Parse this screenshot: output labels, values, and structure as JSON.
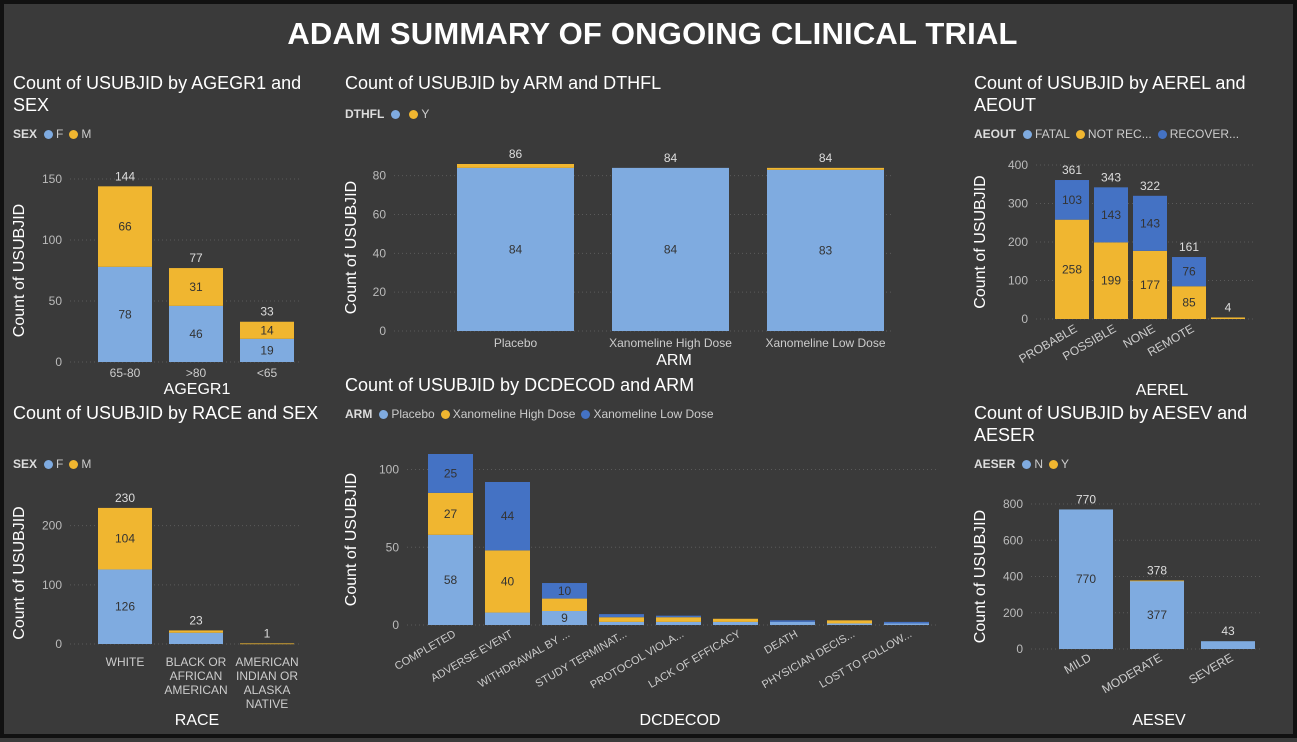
{
  "header": {
    "title": "ADAM SUMMARY OF ONGOING CLINICAL TRIAL"
  },
  "colors": {
    "light_blue": "#7fabe0",
    "yellow": "#f0b630",
    "dark_blue": "#4472c4",
    "background": "#3a3a3a"
  },
  "chart_data": [
    {
      "id": "agegr1",
      "type": "bar",
      "stacked": true,
      "title": "Count of USUBJID by AGEGR1 and SEX",
      "legend_title": "SEX",
      "xlabel": "AGEGR1",
      "ylabel": "Count of USUBJID",
      "categories": [
        "65-80",
        ">80",
        "<65"
      ],
      "series": [
        {
          "name": "F",
          "values": [
            78,
            46,
            19
          ],
          "color": "#7fabe0",
          "labels": [
            "78",
            "46",
            "19"
          ]
        },
        {
          "name": "M",
          "values": [
            66,
            31,
            14
          ],
          "color": "#f0b630",
          "labels": [
            "66",
            "31",
            "14"
          ]
        }
      ],
      "totals": [
        144,
        77,
        33
      ],
      "ylim": [
        0,
        150
      ],
      "yticks": [
        0,
        50,
        100,
        150
      ]
    },
    {
      "id": "arm",
      "type": "bar",
      "stacked": true,
      "title": "Count of USUBJID by ARM and DTHFL",
      "legend_title": "DTHFL",
      "xlabel": "ARM",
      "ylabel": "Count of USUBJID",
      "categories": [
        "Placebo",
        "Xanomeline High Dose",
        "Xanomeline Low Dose"
      ],
      "series": [
        {
          "name": "",
          "values": [
            84,
            84,
            83
          ],
          "color": "#7fabe0",
          "labels": [
            "84",
            "84",
            "83"
          ]
        },
        {
          "name": "Y",
          "values": [
            2,
            0,
            1
          ],
          "color": "#f0b630",
          "labels": [
            "",
            "",
            ""
          ]
        }
      ],
      "totals": [
        86,
        84,
        84
      ],
      "ylim": [
        0,
        86
      ],
      "yticks": [
        0,
        20,
        40,
        60,
        80
      ]
    },
    {
      "id": "aerel",
      "type": "bar",
      "stacked": true,
      "title": "Count of USUBJID by AEREL and AEOUT",
      "legend_title": "AEOUT",
      "xlabel": "AEREL",
      "ylabel": "Count of USUBJID",
      "categories": [
        "PROBABLE",
        "POSSIBLE",
        "NONE",
        "REMOTE",
        ""
      ],
      "series": [
        {
          "name": "FATAL",
          "values": [
            0,
            0,
            0,
            0,
            0
          ],
          "color": "#7fabe0",
          "labels": [
            "",
            "",
            "",
            "",
            ""
          ]
        },
        {
          "name": "NOT REC...",
          "values": [
            258,
            199,
            177,
            85,
            4
          ],
          "color": "#f0b630",
          "labels": [
            "258",
            "199",
            "177",
            "85",
            ""
          ]
        },
        {
          "name": "RECOVER...",
          "values": [
            103,
            143,
            143,
            76,
            0
          ],
          "color": "#4472c4",
          "labels": [
            "103",
            "143",
            "143",
            "76",
            ""
          ]
        }
      ],
      "totals": [
        361,
        343,
        322,
        161,
        4
      ],
      "ylim": [
        0,
        400
      ],
      "yticks": [
        0,
        100,
        200,
        300,
        400
      ]
    },
    {
      "id": "race",
      "type": "bar",
      "stacked": true,
      "title": "Count of USUBJID by RACE and SEX",
      "legend_title": "SEX",
      "xlabel": "RACE",
      "ylabel": "Count of USUBJID",
      "categories": [
        "WHITE",
        "BLACK OR AFRICAN AMERICAN",
        "AMERICAN INDIAN OR ALASKA NATIVE"
      ],
      "category_lines": [
        [
          "WHITE"
        ],
        [
          "BLACK OR",
          "AFRICAN",
          "AMERICAN"
        ],
        [
          "AMERICAN",
          "INDIAN OR",
          "ALASKA",
          "NATIVE"
        ]
      ],
      "series": [
        {
          "name": "F",
          "values": [
            126,
            19,
            0
          ],
          "color": "#7fabe0",
          "labels": [
            "126",
            "",
            ""
          ]
        },
        {
          "name": "M",
          "values": [
            104,
            4,
            1
          ],
          "color": "#f0b630",
          "labels": [
            "104",
            "",
            ""
          ]
        }
      ],
      "totals": [
        230,
        23,
        1
      ],
      "ylim": [
        0,
        240
      ],
      "yticks": [
        0,
        100,
        200
      ]
    },
    {
      "id": "dcdecod",
      "type": "bar",
      "stacked": true,
      "title": "Count of USUBJID by DCDECOD and ARM",
      "legend_title": "ARM",
      "xlabel": "DCDECOD",
      "ylabel": "Count of USUBJID",
      "categories": [
        "COMPLETED",
        "ADVERSE EVENT",
        "WITHDRAWAL BY ...",
        "STUDY TERMINAT...",
        "PROTOCOL VIOLA...",
        "LACK OF EFFICACY",
        "DEATH",
        "PHYSICIAN DECIS...",
        "LOST TO FOLLOW..."
      ],
      "series": [
        {
          "name": "Placebo",
          "values": [
            58,
            8,
            9,
            2,
            2,
            2,
            2,
            1,
            1
          ],
          "color": "#7fabe0",
          "labels": [
            "58",
            "",
            "9",
            "",
            "",
            "",
            "",
            "",
            ""
          ]
        },
        {
          "name": "Xanomeline High Dose",
          "values": [
            27,
            40,
            8,
            3,
            3,
            2,
            0,
            2,
            0
          ],
          "color": "#f0b630",
          "labels": [
            "27",
            "40",
            "",
            "",
            "",
            "",
            "",
            "",
            ""
          ]
        },
        {
          "name": "Xanomeline Low Dose",
          "values": [
            25,
            44,
            10,
            2,
            1,
            0,
            1,
            0,
            1
          ],
          "color": "#4472c4",
          "labels": [
            "25",
            "44",
            "10",
            "",
            "",
            "",
            "",
            "",
            ""
          ]
        }
      ],
      "ylim": [
        0,
        110
      ],
      "yticks": [
        0,
        50,
        100
      ]
    },
    {
      "id": "aesev",
      "type": "bar",
      "stacked": true,
      "title": "Count of USUBJID by AESEV and AESER",
      "legend_title": "AESER",
      "xlabel": "AESEV",
      "ylabel": "Count of USUBJID",
      "categories": [
        "MILD",
        "MODERATE",
        "SEVERE"
      ],
      "series": [
        {
          "name": "N",
          "values": [
            770,
            377,
            43
          ],
          "color": "#7fabe0",
          "labels": [
            "770",
            "377",
            ""
          ]
        },
        {
          "name": "Y",
          "values": [
            0,
            1,
            0
          ],
          "color": "#f0b630",
          "labels": [
            "",
            "",
            ""
          ]
        }
      ],
      "totals": [
        770,
        378,
        43
      ],
      "ylim": [
        0,
        800
      ],
      "yticks": [
        0,
        200,
        400,
        600,
        800
      ]
    }
  ]
}
